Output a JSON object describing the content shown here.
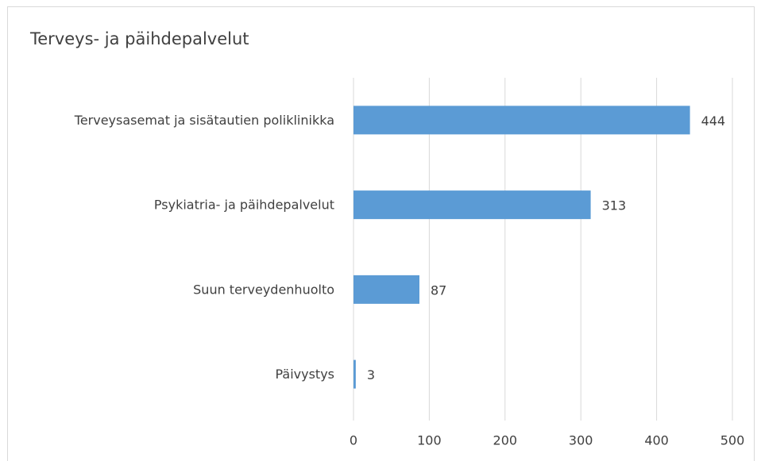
{
  "chart_data": {
    "type": "bar",
    "orientation": "horizontal",
    "title": "Terveys- ja päihdepalvelut",
    "categories": [
      "Terveysasemat ja sisätautien poliklinikka",
      "Psykiatria- ja päihdepalvelut",
      "Suun terveydenhuolto",
      "Päivystys"
    ],
    "values": [
      444,
      313,
      87,
      3
    ],
    "color": "#5b9bd5",
    "xlim": [
      0,
      500
    ],
    "xticks": [
      0,
      100,
      200,
      300,
      400,
      500
    ],
    "grid": true
  }
}
